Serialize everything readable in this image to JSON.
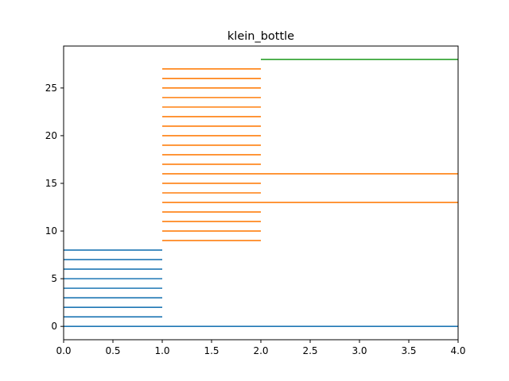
{
  "chart_data": {
    "type": "line",
    "title": "klein_bottle",
    "xlabel": "",
    "ylabel": "",
    "xlim": [
      0,
      4
    ],
    "ylim": [
      -1.4,
      29.4
    ],
    "xticks": [
      "0.0",
      "0.5",
      "1.0",
      "1.5",
      "2.0",
      "2.5",
      "3.0",
      "3.5",
      "4.0"
    ],
    "xtick_values": [
      0,
      0.5,
      1,
      1.5,
      2,
      2.5,
      3,
      3.5,
      4
    ],
    "yticks": [
      "0",
      "5",
      "10",
      "15",
      "20",
      "25"
    ],
    "ytick_values": [
      0,
      5,
      10,
      15,
      20,
      25
    ],
    "grid": false,
    "series": [
      {
        "color": "#1f77b4",
        "segments": [
          {
            "y": 0,
            "x_start": 0,
            "x_end": 4
          },
          {
            "y": 1,
            "x_start": 0,
            "x_end": 1
          },
          {
            "y": 2,
            "x_start": 0,
            "x_end": 1
          },
          {
            "y": 3,
            "x_start": 0,
            "x_end": 1
          },
          {
            "y": 4,
            "x_start": 0,
            "x_end": 1
          },
          {
            "y": 5,
            "x_start": 0,
            "x_end": 1
          },
          {
            "y": 6,
            "x_start": 0,
            "x_end": 1
          },
          {
            "y": 7,
            "x_start": 0,
            "x_end": 1
          },
          {
            "y": 8,
            "x_start": 0,
            "x_end": 1
          }
        ]
      },
      {
        "color": "#ff7f0e",
        "segments": [
          {
            "y": 9,
            "x_start": 1,
            "x_end": 2
          },
          {
            "y": 10,
            "x_start": 1,
            "x_end": 2
          },
          {
            "y": 11,
            "x_start": 1,
            "x_end": 2
          },
          {
            "y": 12,
            "x_start": 1,
            "x_end": 2
          },
          {
            "y": 13,
            "x_start": 1,
            "x_end": 4
          },
          {
            "y": 14,
            "x_start": 1,
            "x_end": 2
          },
          {
            "y": 15,
            "x_start": 1,
            "x_end": 2
          },
          {
            "y": 16,
            "x_start": 1,
            "x_end": 4
          },
          {
            "y": 17,
            "x_start": 1,
            "x_end": 2
          },
          {
            "y": 18,
            "x_start": 1,
            "x_end": 2
          },
          {
            "y": 19,
            "x_start": 1,
            "x_end": 2
          },
          {
            "y": 20,
            "x_start": 1,
            "x_end": 2
          },
          {
            "y": 21,
            "x_start": 1,
            "x_end": 2
          },
          {
            "y": 22,
            "x_start": 1,
            "x_end": 2
          },
          {
            "y": 23,
            "x_start": 1,
            "x_end": 2
          },
          {
            "y": 24,
            "x_start": 1,
            "x_end": 2
          },
          {
            "y": 25,
            "x_start": 1,
            "x_end": 2
          },
          {
            "y": 26,
            "x_start": 1,
            "x_end": 2
          },
          {
            "y": 27,
            "x_start": 1,
            "x_end": 2
          }
        ]
      },
      {
        "color": "#2ca02c",
        "segments": [
          {
            "y": 28,
            "x_start": 2,
            "x_end": 4
          }
        ]
      }
    ]
  }
}
